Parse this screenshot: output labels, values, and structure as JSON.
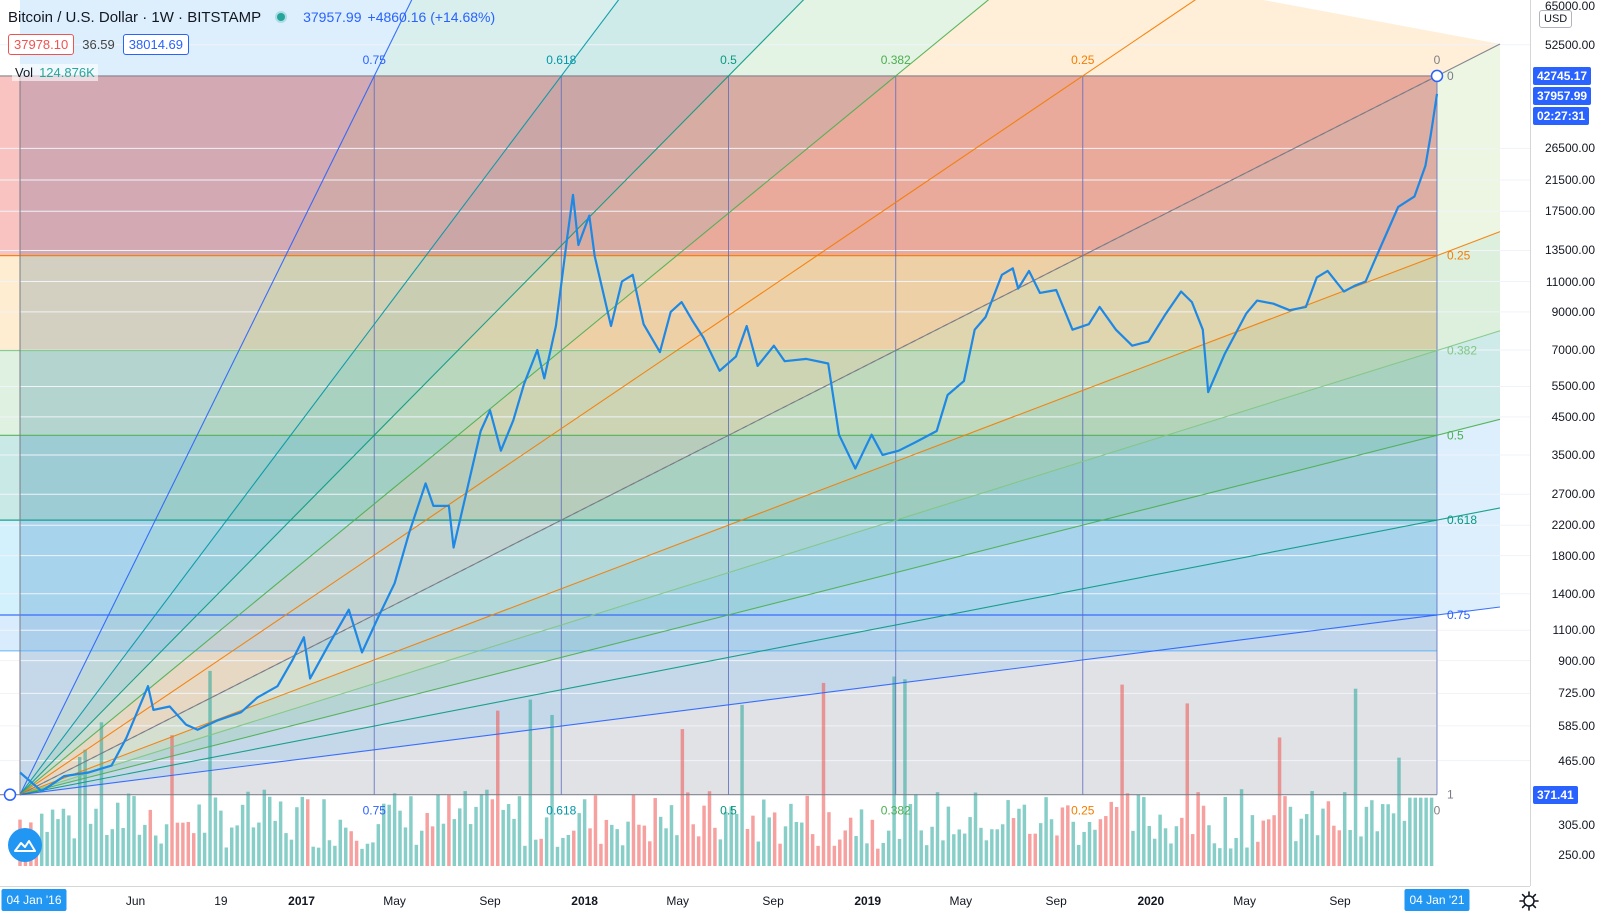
{
  "header": {
    "symbol_title": "Bitcoin / U.S. Dollar · 1W · BITSTAMP",
    "last_price": "37957.99",
    "change": "+4860.16 (+14.68%)",
    "bid": "37978.10",
    "spread": "36.59",
    "ask": "38014.69"
  },
  "volume_legend": {
    "label": "Vol",
    "value": "124.876K"
  },
  "price_axis": {
    "currency": "USD",
    "ticks": [
      "65000.00",
      "52500.00",
      "26500.00",
      "21500.00",
      "17500.00",
      "13500.00",
      "11000.00",
      "9000.00",
      "7000.00",
      "5500.00",
      "4500.00",
      "3500.00",
      "2700.00",
      "2200.00",
      "1800.00",
      "1400.00",
      "1100.00",
      "900.00",
      "725.00",
      "585.00",
      "465.00",
      "305.00",
      "250.00"
    ],
    "badge_high": "42745.17",
    "badge_last": "37957.99",
    "badge_countdown": "02:27:31",
    "badge_low": "371.41"
  },
  "time_axis": {
    "start_badge": "04 Jan '16",
    "end_badge": "04 Jan '21",
    "ticks": [
      {
        "label": "Jun",
        "bold": false
      },
      {
        "label": "19",
        "bold": false
      },
      {
        "label": "2017",
        "bold": true
      },
      {
        "label": "May",
        "bold": false
      },
      {
        "label": "Sep",
        "bold": false
      },
      {
        "label": "2018",
        "bold": true
      },
      {
        "label": "May",
        "bold": false
      },
      {
        "label": "Sep",
        "bold": false
      },
      {
        "label": "2019",
        "bold": true
      },
      {
        "label": "May",
        "bold": false
      },
      {
        "label": "Sep",
        "bold": false
      },
      {
        "label": "2020",
        "bold": true
      },
      {
        "label": "May",
        "bold": false
      },
      {
        "label": "Sep",
        "bold": false
      }
    ]
  },
  "colors": {
    "price_line": "#2962ff",
    "up_volume": "#26a69a",
    "down_volume": "#ef5350",
    "accent": "#2196f3"
  },
  "chart_data": {
    "type": "line",
    "title": "Bitcoin / U.S. Dollar · 1W · BITSTAMP",
    "y_scale": "log",
    "ylim": [
      250,
      65000
    ],
    "x_range": [
      "2016-01-04",
      "2021-01-04"
    ],
    "series": [
      {
        "name": "BTCUSD",
        "points": [
          [
            "2016-01-04",
            430
          ],
          [
            "2016-02-01",
            380
          ],
          [
            "2016-03-01",
            420
          ],
          [
            "2016-04-01",
            430
          ],
          [
            "2016-05-01",
            450
          ],
          [
            "2016-05-20",
            540
          ],
          [
            "2016-06-17",
            760
          ],
          [
            "2016-06-24",
            650
          ],
          [
            "2016-07-15",
            665
          ],
          [
            "2016-08-05",
            590
          ],
          [
            "2016-08-20",
            570
          ],
          [
            "2016-09-15",
            607
          ],
          [
            "2016-10-15",
            640
          ],
          [
            "2016-11-05",
            705
          ],
          [
            "2016-12-01",
            760
          ],
          [
            "2016-12-20",
            900
          ],
          [
            "2017-01-04",
            1050
          ],
          [
            "2017-01-12",
            800
          ],
          [
            "2017-02-05",
            1000
          ],
          [
            "2017-03-03",
            1260
          ],
          [
            "2017-03-20",
            950
          ],
          [
            "2017-04-10",
            1200
          ],
          [
            "2017-05-01",
            1500
          ],
          [
            "2017-05-20",
            2100
          ],
          [
            "2017-06-10",
            2900
          ],
          [
            "2017-06-20",
            2500
          ],
          [
            "2017-07-10",
            2500
          ],
          [
            "2017-07-16",
            1900
          ],
          [
            "2017-08-01",
            2700
          ],
          [
            "2017-08-20",
            4100
          ],
          [
            "2017-09-01",
            4700
          ],
          [
            "2017-09-15",
            3600
          ],
          [
            "2017-10-01",
            4400
          ],
          [
            "2017-10-15",
            5600
          ],
          [
            "2017-11-01",
            7000
          ],
          [
            "2017-11-10",
            5800
          ],
          [
            "2017-11-25",
            8200
          ],
          [
            "2017-12-10",
            15000
          ],
          [
            "2017-12-17",
            19500
          ],
          [
            "2017-12-24",
            14000
          ],
          [
            "2018-01-07",
            17000
          ],
          [
            "2018-01-14",
            13000
          ],
          [
            "2018-02-04",
            8200
          ],
          [
            "2018-02-18",
            11000
          ],
          [
            "2018-03-04",
            11500
          ],
          [
            "2018-03-18",
            8300
          ],
          [
            "2018-04-08",
            6900
          ],
          [
            "2018-04-22",
            9000
          ],
          [
            "2018-05-06",
            9600
          ],
          [
            "2018-05-20",
            8500
          ],
          [
            "2018-06-03",
            7600
          ],
          [
            "2018-06-24",
            6100
          ],
          [
            "2018-07-15",
            6700
          ],
          [
            "2018-07-29",
            8200
          ],
          [
            "2018-08-12",
            6300
          ],
          [
            "2018-09-02",
            7200
          ],
          [
            "2018-09-16",
            6500
          ],
          [
            "2018-10-14",
            6600
          ],
          [
            "2018-11-11",
            6400
          ],
          [
            "2018-11-25",
            4000
          ],
          [
            "2018-12-16",
            3200
          ],
          [
            "2019-01-06",
            4000
          ],
          [
            "2019-01-20",
            3500
          ],
          [
            "2019-02-10",
            3600
          ],
          [
            "2019-03-03",
            3800
          ],
          [
            "2019-03-31",
            4100
          ],
          [
            "2019-04-14",
            5200
          ],
          [
            "2019-05-05",
            5700
          ],
          [
            "2019-05-19",
            8000
          ],
          [
            "2019-06-02",
            8700
          ],
          [
            "2019-06-23",
            11500
          ],
          [
            "2019-07-07",
            12000
          ],
          [
            "2019-07-14",
            10500
          ],
          [
            "2019-07-28",
            11800
          ],
          [
            "2019-08-11",
            10200
          ],
          [
            "2019-09-01",
            10400
          ],
          [
            "2019-09-22",
            8000
          ],
          [
            "2019-10-13",
            8300
          ],
          [
            "2019-10-27",
            9300
          ],
          [
            "2019-11-17",
            8000
          ],
          [
            "2019-12-08",
            7200
          ],
          [
            "2019-12-29",
            7400
          ],
          [
            "2020-01-19",
            8800
          ],
          [
            "2020-02-09",
            10300
          ],
          [
            "2020-02-23",
            9600
          ],
          [
            "2020-03-08",
            8000
          ],
          [
            "2020-03-15",
            5300
          ],
          [
            "2020-04-05",
            6800
          ],
          [
            "2020-05-03",
            8900
          ],
          [
            "2020-05-17",
            9700
          ],
          [
            "2020-06-07",
            9500
          ],
          [
            "2020-06-28",
            9100
          ],
          [
            "2020-07-19",
            9300
          ],
          [
            "2020-08-02",
            11300
          ],
          [
            "2020-08-16",
            11800
          ],
          [
            "2020-09-06",
            10300
          ],
          [
            "2020-09-20",
            10700
          ],
          [
            "2020-10-04",
            11000
          ],
          [
            "2020-10-18",
            13000
          ],
          [
            "2020-11-01",
            15300
          ],
          [
            "2020-11-15",
            18000
          ],
          [
            "2020-12-06",
            19300
          ],
          [
            "2020-12-20",
            23600
          ],
          [
            "2020-12-27",
            29000
          ],
          [
            "2021-01-04",
            37958
          ]
        ]
      }
    ],
    "volume": {
      "name": "Vol",
      "last": "124.876K",
      "approx_range": [
        250,
        950
      ]
    },
    "fib_speed_fan": {
      "anchor": [
        "2016-01-04",
        371.41
      ],
      "end": [
        "2021-01-04",
        42745.17
      ],
      "horizontal_levels": [
        "0",
        "0.25",
        "0.382",
        "0.5",
        "0.618",
        "0.75",
        "1"
      ],
      "vertical_levels": [
        "0.75",
        "0.618",
        "0.5",
        "0.382",
        "0.25",
        "0"
      ],
      "level_colors": {
        "0": "#808080",
        "0.25": "#f57c00",
        "0.382": "#4caf50",
        "0.5": "#089981",
        "0.618": "#0097a7",
        "0.75": "#2962ff",
        "1": "#808080"
      }
    }
  }
}
